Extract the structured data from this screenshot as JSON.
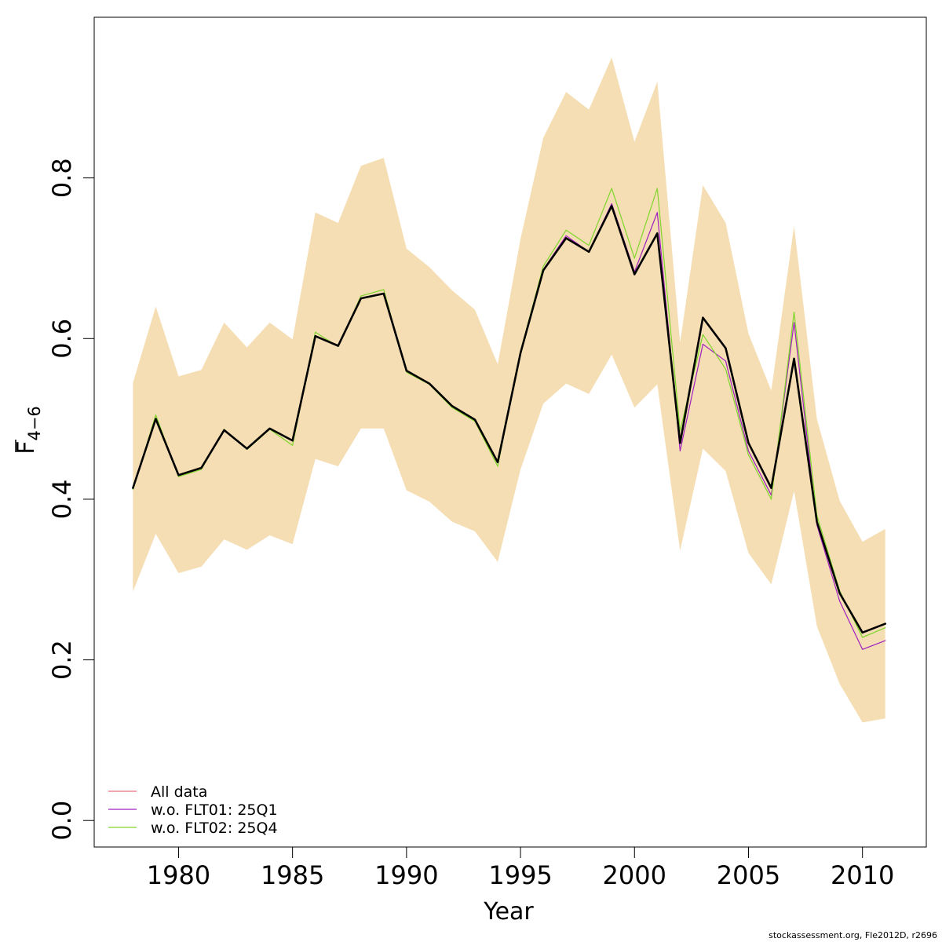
{
  "chart_data": {
    "type": "line",
    "xlabel": "Year",
    "ylabel_main": "F",
    "ylabel_sub": "4−6",
    "xlim": [
      1976.3,
      2012.8
    ],
    "ylim": [
      -0.033,
      1.0
    ],
    "x_ticks": [
      1980,
      1985,
      1990,
      1995,
      2000,
      2005,
      2010
    ],
    "y_ticks": [
      0.0,
      0.2,
      0.4,
      0.6,
      0.8
    ],
    "x_tick_labels": [
      "1980",
      "1985",
      "1990",
      "1995",
      "2000",
      "2005",
      "2010"
    ],
    "y_tick_labels": [
      "0.0",
      "0.2",
      "0.4",
      "0.6",
      "0.8"
    ],
    "x": [
      1978,
      1979,
      1980,
      1981,
      1982,
      1983,
      1984,
      1985,
      1986,
      1987,
      1988,
      1989,
      1990,
      1991,
      1992,
      1993,
      1994,
      1995,
      1996,
      1997,
      1998,
      1999,
      2000,
      2001,
      2002,
      2003,
      2004,
      2005,
      2006,
      2007,
      2008,
      2009,
      2010,
      2011
    ],
    "band": {
      "color": "#F5DEB3",
      "lower": [
        0.285,
        0.357,
        0.308,
        0.316,
        0.35,
        0.337,
        0.355,
        0.344,
        0.45,
        0.441,
        0.488,
        0.488,
        0.411,
        0.397,
        0.372,
        0.36,
        0.322,
        0.437,
        0.519,
        0.544,
        0.531,
        0.58,
        0.514,
        0.543,
        0.336,
        0.463,
        0.435,
        0.333,
        0.294,
        0.41,
        0.242,
        0.17,
        0.122,
        0.127
      ],
      "upper": [
        0.545,
        0.64,
        0.553,
        0.561,
        0.62,
        0.589,
        0.62,
        0.599,
        0.757,
        0.744,
        0.815,
        0.825,
        0.712,
        0.689,
        0.66,
        0.636,
        0.568,
        0.724,
        0.85,
        0.907,
        0.885,
        0.95,
        0.845,
        0.92,
        0.595,
        0.791,
        0.744,
        0.606,
        0.535,
        0.74,
        0.5,
        0.398,
        0.347,
        0.363
      ]
    },
    "series": [
      {
        "name": "All data",
        "color": "#E7757D",
        "width": 1.2,
        "values": [
          0.414,
          0.5,
          0.43,
          0.439,
          0.486,
          0.463,
          0.488,
          0.473,
          0.603,
          0.591,
          0.65,
          0.656,
          0.56,
          0.544,
          0.516,
          0.499,
          0.446,
          0.582,
          0.685,
          0.725,
          0.708,
          0.765,
          0.68,
          0.731,
          0.47,
          0.626,
          0.588,
          0.47,
          0.414,
          0.575,
          0.372,
          0.283,
          0.234,
          0.245
        ]
      },
      {
        "name": "w.o. FLT01: 25Q1",
        "color": "#A020C0",
        "width": 1.2,
        "values": [
          0.414,
          0.5,
          0.43,
          0.439,
          0.486,
          0.463,
          0.488,
          0.473,
          0.603,
          0.591,
          0.65,
          0.656,
          0.56,
          0.544,
          0.516,
          0.499,
          0.446,
          0.582,
          0.686,
          0.728,
          0.708,
          0.768,
          0.683,
          0.757,
          0.46,
          0.593,
          0.572,
          0.46,
          0.405,
          0.62,
          0.368,
          0.273,
          0.213,
          0.224
        ]
      },
      {
        "name": "w.o. FLT02: 25Q4",
        "color": "#7FD52B",
        "width": 1.2,
        "values": [
          0.412,
          0.505,
          0.428,
          0.437,
          0.487,
          0.462,
          0.487,
          0.467,
          0.608,
          0.59,
          0.653,
          0.661,
          0.558,
          0.543,
          0.514,
          0.497,
          0.441,
          0.584,
          0.69,
          0.735,
          0.716,
          0.787,
          0.7,
          0.787,
          0.485,
          0.605,
          0.562,
          0.455,
          0.4,
          0.633,
          0.38,
          0.286,
          0.228,
          0.24
        ]
      },
      {
        "name": "",
        "color": "#000000",
        "width": 2.6,
        "values": [
          0.414,
          0.5,
          0.43,
          0.439,
          0.486,
          0.463,
          0.488,
          0.473,
          0.603,
          0.591,
          0.65,
          0.656,
          0.56,
          0.544,
          0.516,
          0.499,
          0.446,
          0.582,
          0.685,
          0.725,
          0.708,
          0.765,
          0.68,
          0.731,
          0.47,
          0.626,
          0.588,
          0.47,
          0.414,
          0.575,
          0.372,
          0.283,
          0.234,
          0.245
        ]
      }
    ],
    "legend": {
      "position": "bottom-left",
      "entries": [
        "All data",
        "w.o. FLT01: 25Q1",
        "w.o. FLT02: 25Q4"
      ],
      "colors": [
        "#E7757D",
        "#A020C0",
        "#7FD52B"
      ]
    },
    "grid": false
  },
  "footer": "stockassessment.org, Fle2012D, r2696"
}
